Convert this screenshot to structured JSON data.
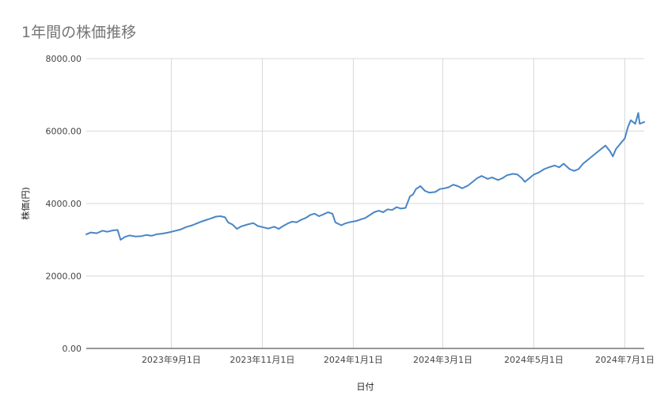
{
  "chart_data": {
    "type": "line",
    "title": "1年間の株価推移",
    "xlabel": "日付",
    "ylabel": "株価(円)",
    "ylim": [
      0,
      8000
    ],
    "yticks": [
      "0.00",
      "2000.00",
      "4000.00",
      "6000.00",
      "8000.00"
    ],
    "xlim": [
      "2023-07-06",
      "2024-07-14"
    ],
    "xticks": [
      {
        "date": "2023-09-01",
        "label": "2023年9月1日"
      },
      {
        "date": "2023-11-01",
        "label": "2023年11月1日"
      },
      {
        "date": "2024-01-01",
        "label": "2024年1月1日"
      },
      {
        "date": "2024-03-01",
        "label": "2024年3月1日"
      },
      {
        "date": "2024-05-01",
        "label": "2024年5月1日"
      },
      {
        "date": "2024-07-01",
        "label": "2024年7月1日"
      }
    ],
    "grid": true,
    "legend": "none",
    "series_color": "#4a86c5",
    "series": [
      {
        "points": [
          [
            "2023-07-06",
            3150
          ],
          [
            "2023-07-09",
            3200
          ],
          [
            "2023-07-13",
            3180
          ],
          [
            "2023-07-17",
            3250
          ],
          [
            "2023-07-20",
            3220
          ],
          [
            "2023-07-24",
            3260
          ],
          [
            "2023-07-27",
            3270
          ],
          [
            "2023-07-29",
            3000
          ],
          [
            "2023-08-01",
            3080
          ],
          [
            "2023-08-04",
            3120
          ],
          [
            "2023-08-08",
            3090
          ],
          [
            "2023-08-12",
            3100
          ],
          [
            "2023-08-15",
            3130
          ],
          [
            "2023-08-19",
            3110
          ],
          [
            "2023-08-22",
            3150
          ],
          [
            "2023-08-26",
            3170
          ],
          [
            "2023-08-30",
            3200
          ],
          [
            "2023-09-03",
            3240
          ],
          [
            "2023-09-07",
            3280
          ],
          [
            "2023-09-11",
            3350
          ],
          [
            "2023-09-15",
            3400
          ],
          [
            "2023-09-18",
            3450
          ],
          [
            "2023-09-21",
            3500
          ],
          [
            "2023-09-24",
            3540
          ],
          [
            "2023-09-27",
            3580
          ],
          [
            "2023-10-01",
            3640
          ],
          [
            "2023-10-04",
            3650
          ],
          [
            "2023-10-07",
            3620
          ],
          [
            "2023-10-09",
            3480
          ],
          [
            "2023-10-12",
            3420
          ],
          [
            "2023-10-15",
            3300
          ],
          [
            "2023-10-18",
            3370
          ],
          [
            "2023-10-22",
            3420
          ],
          [
            "2023-10-26",
            3460
          ],
          [
            "2023-10-29",
            3380
          ],
          [
            "2023-11-02",
            3340
          ],
          [
            "2023-11-05",
            3310
          ],
          [
            "2023-11-09",
            3360
          ],
          [
            "2023-11-12",
            3300
          ],
          [
            "2023-11-15",
            3380
          ],
          [
            "2023-11-18",
            3450
          ],
          [
            "2023-11-21",
            3500
          ],
          [
            "2023-11-24",
            3480
          ],
          [
            "2023-11-27",
            3550
          ],
          [
            "2023-11-30",
            3600
          ],
          [
            "2023-12-03",
            3680
          ],
          [
            "2023-12-06",
            3720
          ],
          [
            "2023-12-09",
            3650
          ],
          [
            "2023-12-12",
            3700
          ],
          [
            "2023-12-15",
            3760
          ],
          [
            "2023-12-18",
            3720
          ],
          [
            "2023-12-20",
            3480
          ],
          [
            "2023-12-24",
            3400
          ],
          [
            "2023-12-26",
            3440
          ],
          [
            "2023-12-29",
            3480
          ],
          [
            "2024-01-03",
            3520
          ],
          [
            "2024-01-06",
            3560
          ],
          [
            "2024-01-09",
            3600
          ],
          [
            "2024-01-12",
            3680
          ],
          [
            "2024-01-15",
            3760
          ],
          [
            "2024-01-18",
            3800
          ],
          [
            "2024-01-21",
            3760
          ],
          [
            "2024-01-24",
            3840
          ],
          [
            "2024-01-27",
            3820
          ],
          [
            "2024-01-30",
            3900
          ],
          [
            "2024-02-02",
            3860
          ],
          [
            "2024-02-05",
            3880
          ],
          [
            "2024-02-08",
            4200
          ],
          [
            "2024-02-10",
            4250
          ],
          [
            "2024-02-12",
            4400
          ],
          [
            "2024-02-15",
            4480
          ],
          [
            "2024-02-18",
            4350
          ],
          [
            "2024-02-21",
            4300
          ],
          [
            "2024-02-25",
            4320
          ],
          [
            "2024-02-28",
            4400
          ],
          [
            "2024-03-02",
            4420
          ],
          [
            "2024-03-05",
            4450
          ],
          [
            "2024-03-08",
            4520
          ],
          [
            "2024-03-11",
            4480
          ],
          [
            "2024-03-14",
            4420
          ],
          [
            "2024-03-18",
            4500
          ],
          [
            "2024-03-21",
            4600
          ],
          [
            "2024-03-24",
            4700
          ],
          [
            "2024-03-27",
            4760
          ],
          [
            "2024-03-31",
            4680
          ],
          [
            "2024-04-03",
            4720
          ],
          [
            "2024-04-07",
            4650
          ],
          [
            "2024-04-10",
            4700
          ],
          [
            "2024-04-13",
            4780
          ],
          [
            "2024-04-17",
            4820
          ],
          [
            "2024-04-20",
            4800
          ],
          [
            "2024-04-23",
            4700
          ],
          [
            "2024-04-25",
            4600
          ],
          [
            "2024-04-28",
            4700
          ],
          [
            "2024-05-01",
            4800
          ],
          [
            "2024-05-04",
            4850
          ],
          [
            "2024-05-08",
            4950
          ],
          [
            "2024-05-11",
            5000
          ],
          [
            "2024-05-15",
            5050
          ],
          [
            "2024-05-18",
            5000
          ],
          [
            "2024-05-21",
            5100
          ],
          [
            "2024-05-25",
            4950
          ],
          [
            "2024-05-28",
            4900
          ],
          [
            "2024-05-31",
            4950
          ],
          [
            "2024-06-03",
            5100
          ],
          [
            "2024-06-06",
            5200
          ],
          [
            "2024-06-09",
            5300
          ],
          [
            "2024-06-12",
            5400
          ],
          [
            "2024-06-15",
            5500
          ],
          [
            "2024-06-18",
            5600
          ],
          [
            "2024-06-21",
            5450
          ],
          [
            "2024-06-23",
            5300
          ],
          [
            "2024-06-25",
            5500
          ],
          [
            "2024-06-28",
            5650
          ],
          [
            "2024-07-01",
            5800
          ],
          [
            "2024-07-03",
            6100
          ],
          [
            "2024-07-05",
            6300
          ],
          [
            "2024-07-08",
            6200
          ],
          [
            "2024-07-10",
            6500
          ],
          [
            "2024-07-11",
            6200
          ],
          [
            "2024-07-14",
            6250
          ]
        ]
      }
    ]
  }
}
